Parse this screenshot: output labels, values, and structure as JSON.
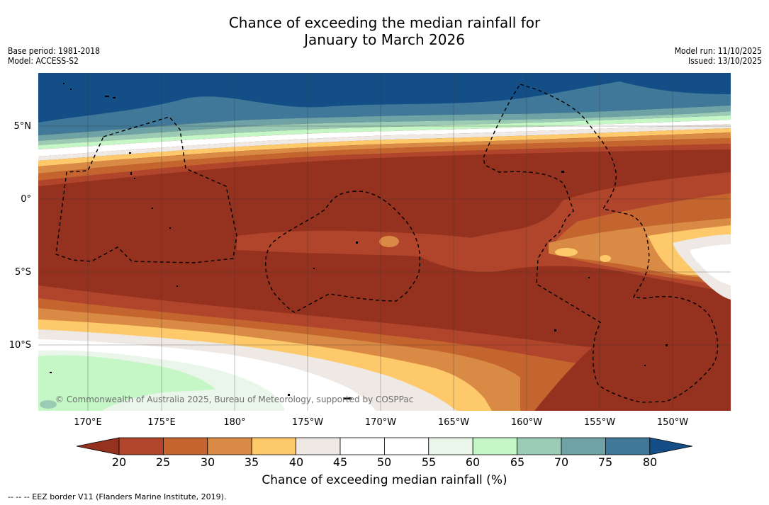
{
  "title": {
    "line1": "Chance of exceeding the median rainfall for",
    "line2": "January to March 2026"
  },
  "meta": {
    "base_period": "Base period: 1981-2018",
    "model": "Model: ACCESS-S2",
    "model_run": "Model run: 11/10/2025",
    "issued": "Issued: 13/10/2025"
  },
  "map": {
    "lat_labels": [
      "5°N",
      "0°",
      "5°S",
      "10°S"
    ],
    "lon_labels": [
      "170°E",
      "175°E",
      "180°",
      "175°W",
      "170°W",
      "165°W",
      "160°W",
      "155°W",
      "150°W"
    ],
    "credit": "© Commonwealth of Australia 2025, Bureau of Meteorology, supported by COSPPac",
    "colors": {
      "deep_dry": "#94321f",
      "dry": "#b1452b",
      "mod_dry": "#c4652f",
      "light_dry": "#d98a44",
      "amber": "#fdc96a",
      "neutral": "#eee9e5",
      "white": "#ffffff",
      "pale_green": "#eaf6ea",
      "green": "#c4f6c6",
      "teal_light": "#9bcbb4",
      "teal": "#6fa2a4",
      "blue_grey": "#3f7898",
      "deep_blue": "#134e87"
    }
  },
  "colorbar": {
    "ticks": [
      "20",
      "25",
      "30",
      "35",
      "40",
      "45",
      "50",
      "55",
      "60",
      "65",
      "70",
      "75",
      "80"
    ],
    "colors": [
      "#94321f",
      "#b1452b",
      "#c4652f",
      "#d98a44",
      "#fdc96a",
      "#eee9e5",
      "#ffffff",
      "#ffffff",
      "#eaf6ea",
      "#c4f6c6",
      "#9bcbb4",
      "#6fa2a4",
      "#3f7898",
      "#134e87"
    ],
    "title": "Chance of exceeding median rainfall (%)"
  },
  "legend": {
    "text": "--  --  -- EEZ border V11 (Flanders Marine Institute, 2019)."
  }
}
